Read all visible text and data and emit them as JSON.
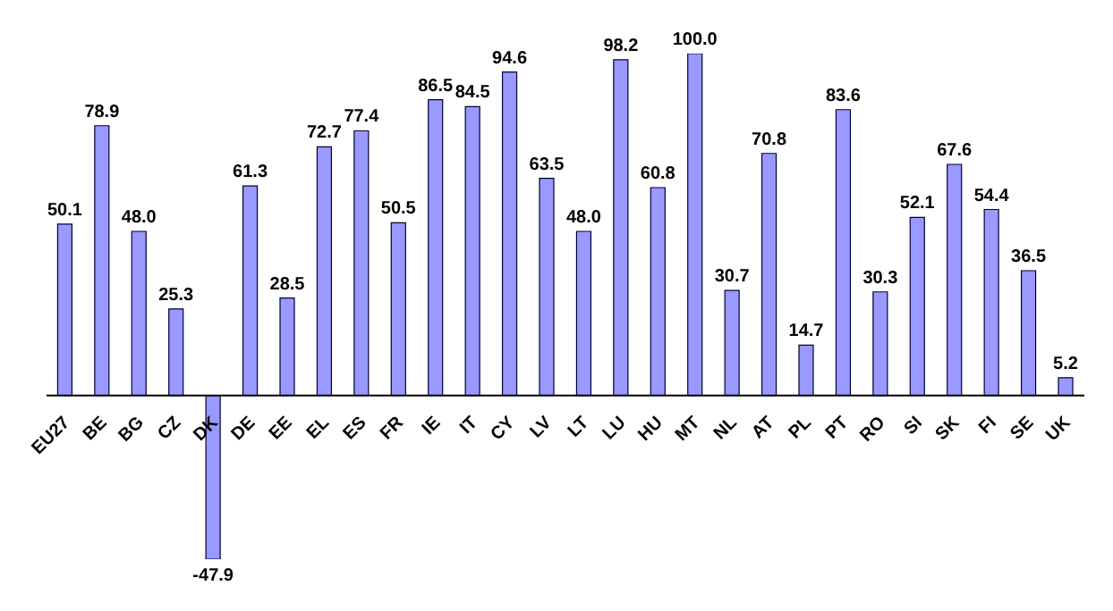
{
  "chart_data": {
    "type": "bar",
    "categories": [
      "EU27",
      "BE",
      "BG",
      "CZ",
      "DK",
      "DE",
      "EE",
      "EL",
      "ES",
      "FR",
      "IE",
      "IT",
      "CY",
      "LV",
      "LT",
      "LU",
      "HU",
      "MT",
      "NL",
      "AT",
      "PL",
      "PT",
      "RO",
      "SI",
      "SK",
      "FI",
      "SE",
      "UK"
    ],
    "values": [
      50.1,
      78.9,
      48.0,
      25.3,
      -47.9,
      61.3,
      28.5,
      72.7,
      77.4,
      50.5,
      86.5,
      84.5,
      94.6,
      63.5,
      48.0,
      98.2,
      60.8,
      100.0,
      30.7,
      70.8,
      14.7,
      83.6,
      30.3,
      52.1,
      67.6,
      54.4,
      36.5,
      5.2
    ],
    "value_labels": [
      "50.1",
      "78.9",
      "48.0",
      "25.3",
      "-47.9",
      "61.3",
      "28.5",
      "72.7",
      "77.4",
      "50.5",
      "86.5",
      "84.5",
      "94.6",
      "63.5",
      "48.0",
      "98.2",
      "60.8",
      "100.0",
      "30.7",
      "70.8",
      "14.7",
      "83.6",
      "30.3",
      "52.1",
      "67.6",
      "54.4",
      "36.5",
      "5.2"
    ],
    "color": "#9999ff"
  }
}
